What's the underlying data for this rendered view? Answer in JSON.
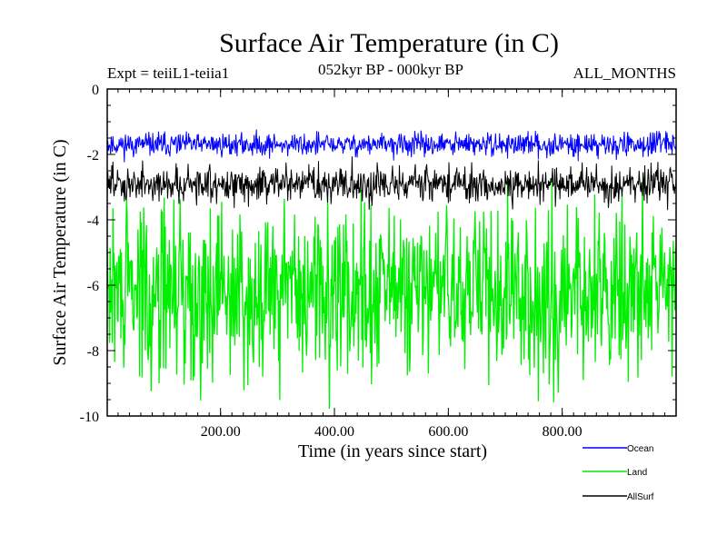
{
  "chart_data": {
    "type": "line",
    "title": "Surface Air Temperature (in C)",
    "subtitle": "052kyr BP - 000kyr BP",
    "left_note": "Expt = teiiL1-teiia1",
    "right_note": "ALL_MONTHS",
    "xlabel": "Time (in years since start)",
    "ylabel": "Surface Air Temperature (in C)",
    "xlim": [
      1,
      1000
    ],
    "ylim": [
      -10,
      0
    ],
    "x_ticks": [
      200,
      400,
      600,
      800
    ],
    "x_tick_labels": [
      "200.00",
      "400.00",
      "600.00",
      "800.00"
    ],
    "y_ticks": [
      0,
      -2,
      -4,
      -6,
      -8,
      -10
    ],
    "y_tick_labels": [
      "0",
      "-2",
      "-4",
      "-6",
      "-8",
      "-10"
    ],
    "grid": false,
    "legend_position": "bottom-right",
    "series": [
      {
        "name": "Ocean",
        "color": "#0000ff",
        "mean": -1.7,
        "spread": 0.35,
        "min": -2.6,
        "max": -0.8
      },
      {
        "name": "Land",
        "color": "#00ee00",
        "mean": -6.2,
        "spread": 2.6,
        "min": -9.8,
        "max": -2.7
      },
      {
        "name": "AllSurf",
        "color": "#000000",
        "mean": -2.9,
        "spread": 0.55,
        "min": -4.1,
        "max": -1.9
      }
    ]
  }
}
